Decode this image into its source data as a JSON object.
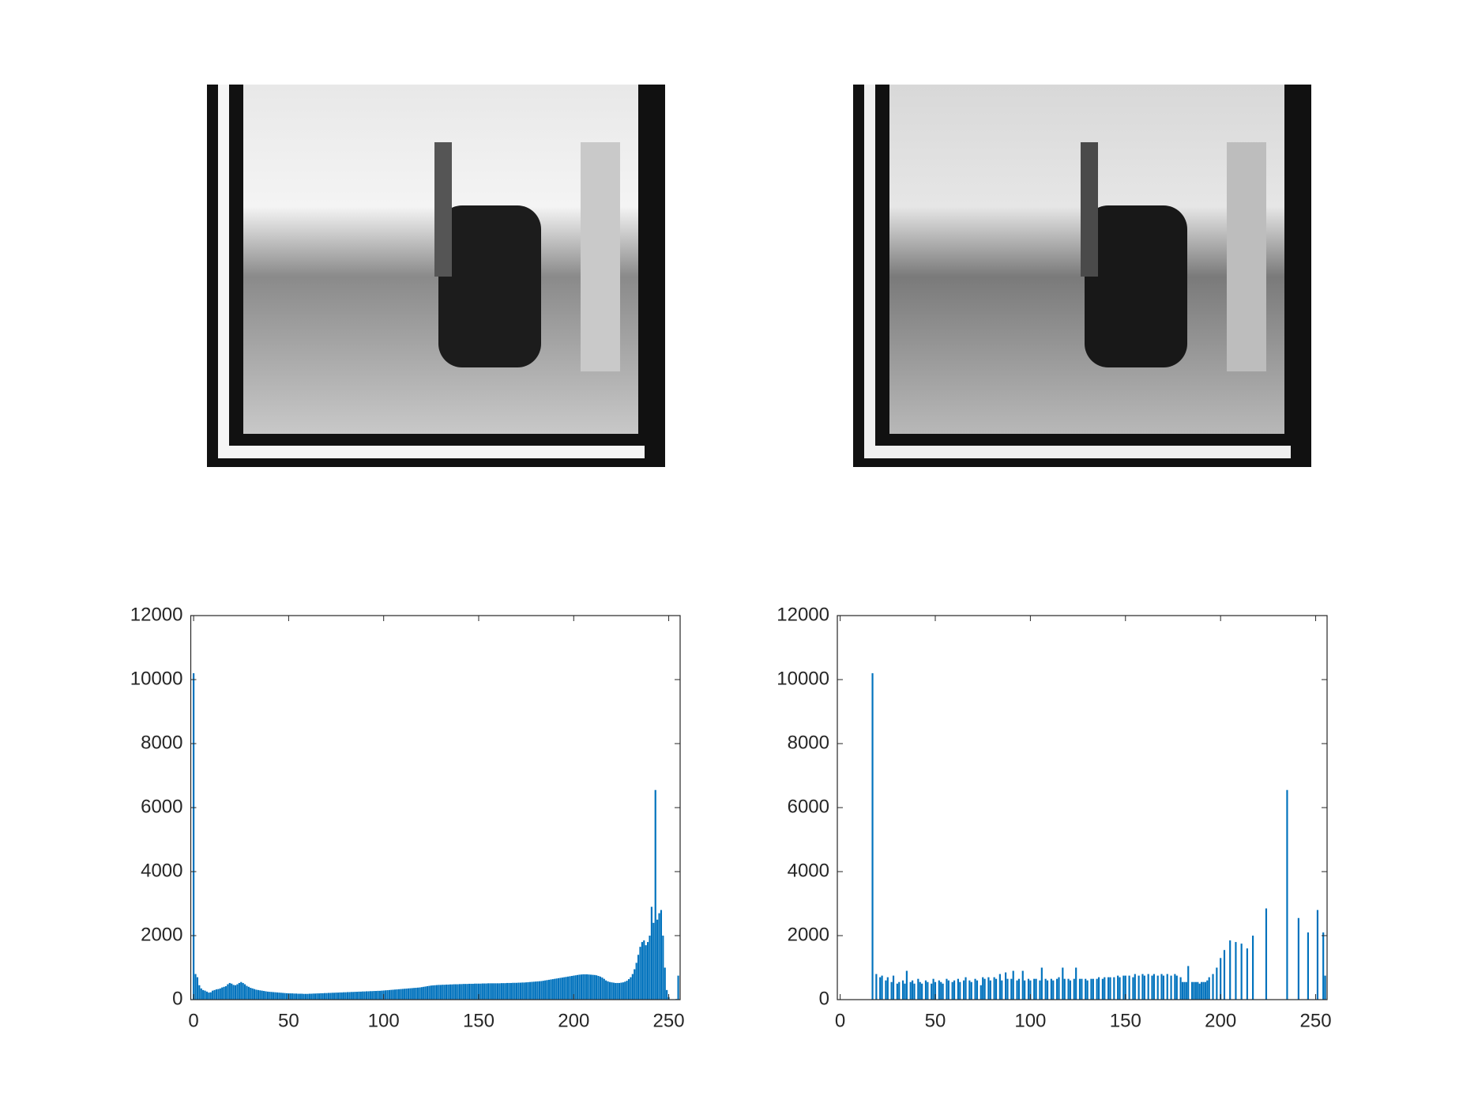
{
  "chart_data": [
    {
      "type": "histogram",
      "color": "#0072bd",
      "xlim": [
        -1.5,
        256
      ],
      "ylim": [
        0,
        12000
      ],
      "xticks": [
        0,
        50,
        100,
        150,
        200,
        250
      ],
      "yticks": [
        0,
        2000,
        4000,
        6000,
        8000,
        10000,
        12000
      ],
      "x": [
        0,
        1,
        2,
        3,
        4,
        5,
        6,
        7,
        8,
        9,
        10,
        11,
        12,
        13,
        14,
        15,
        16,
        17,
        18,
        19,
        20,
        21,
        22,
        23,
        24,
        25,
        26,
        27,
        28,
        29,
        30,
        31,
        32,
        33,
        34,
        35,
        36,
        37,
        38,
        39,
        40,
        41,
        42,
        43,
        44,
        45,
        46,
        47,
        48,
        49,
        50,
        51,
        52,
        53,
        54,
        55,
        56,
        57,
        58,
        59,
        60,
        61,
        62,
        63,
        64,
        65,
        66,
        67,
        68,
        69,
        70,
        71,
        72,
        73,
        74,
        75,
        76,
        77,
        78,
        79,
        80,
        81,
        82,
        83,
        84,
        85,
        86,
        87,
        88,
        89,
        90,
        91,
        92,
        93,
        94,
        95,
        96,
        97,
        98,
        99,
        100,
        101,
        102,
        103,
        104,
        105,
        106,
        107,
        108,
        109,
        110,
        111,
        112,
        113,
        114,
        115,
        116,
        117,
        118,
        119,
        120,
        121,
        122,
        123,
        124,
        125,
        126,
        127,
        128,
        129,
        130,
        131,
        132,
        133,
        134,
        135,
        136,
        137,
        138,
        139,
        140,
        141,
        142,
        143,
        144,
        145,
        146,
        147,
        148,
        149,
        150,
        151,
        152,
        153,
        154,
        155,
        156,
        157,
        158,
        159,
        160,
        161,
        162,
        163,
        164,
        165,
        166,
        167,
        168,
        169,
        170,
        171,
        172,
        173,
        174,
        175,
        176,
        177,
        178,
        179,
        180,
        181,
        182,
        183,
        184,
        185,
        186,
        187,
        188,
        189,
        190,
        191,
        192,
        193,
        194,
        195,
        196,
        197,
        198,
        199,
        200,
        201,
        202,
        203,
        204,
        205,
        206,
        207,
        208,
        209,
        210,
        211,
        212,
        213,
        214,
        215,
        216,
        217,
        218,
        219,
        220,
        221,
        222,
        223,
        224,
        225,
        226,
        227,
        228,
        229,
        230,
        231,
        232,
        233,
        234,
        235,
        236,
        237,
        238,
        239,
        240,
        241,
        242,
        243,
        244,
        245,
        246,
        247,
        248,
        249,
        250,
        251,
        252,
        253,
        254,
        255
      ],
      "values": [
        10200,
        800,
        700,
        450,
        350,
        300,
        280,
        250,
        220,
        230,
        280,
        300,
        320,
        330,
        350,
        380,
        400,
        420,
        480,
        520,
        500,
        460,
        450,
        480,
        520,
        550,
        520,
        480,
        430,
        400,
        370,
        350,
        330,
        310,
        300,
        290,
        280,
        270,
        260,
        250,
        245,
        240,
        235,
        230,
        225,
        220,
        215,
        210,
        205,
        200,
        200,
        195,
        195,
        190,
        190,
        185,
        185,
        185,
        180,
        180,
        180,
        185,
        185,
        190,
        190,
        195,
        195,
        200,
        200,
        205,
        205,
        210,
        210,
        215,
        215,
        220,
        220,
        225,
        225,
        230,
        230,
        235,
        235,
        240,
        240,
        245,
        245,
        250,
        250,
        255,
        255,
        260,
        260,
        265,
        265,
        270,
        270,
        275,
        275,
        280,
        285,
        290,
        295,
        300,
        305,
        310,
        315,
        320,
        325,
        330,
        335,
        340,
        345,
        350,
        355,
        360,
        365,
        370,
        375,
        380,
        390,
        400,
        410,
        420,
        430,
        440,
        445,
        450,
        455,
        460,
        460,
        465,
        465,
        470,
        470,
        475,
        475,
        480,
        480,
        480,
        485,
        485,
        490,
        490,
        490,
        495,
        495,
        495,
        500,
        500,
        500,
        500,
        505,
        505,
        505,
        510,
        510,
        510,
        510,
        510,
        510,
        510,
        515,
        515,
        515,
        520,
        520,
        520,
        525,
        525,
        525,
        530,
        530,
        535,
        535,
        540,
        545,
        550,
        555,
        560,
        565,
        570,
        575,
        580,
        590,
        600,
        610,
        620,
        630,
        640,
        650,
        660,
        670,
        680,
        690,
        700,
        710,
        720,
        730,
        740,
        750,
        760,
        770,
        780,
        785,
        790,
        790,
        790,
        785,
        780,
        775,
        770,
        760,
        740,
        720,
        690,
        650,
        600,
        570,
        550,
        540,
        530,
        520,
        520,
        520,
        530,
        540,
        560,
        590,
        640,
        700,
        800,
        950,
        1150,
        1400,
        1650,
        1800,
        1850,
        1700,
        1800,
        2000,
        2900,
        2400,
        6550,
        2500,
        2700,
        2800,
        2000,
        1000,
        300,
        80,
        0,
        0,
        0,
        20,
        750
      ]
    },
    {
      "type": "histogram",
      "color": "#0072bd",
      "xlim": [
        -1.5,
        256
      ],
      "ylim": [
        0,
        12000
      ],
      "xticks": [
        0,
        50,
        100,
        150,
        200,
        250
      ],
      "yticks": [
        0,
        2000,
        4000,
        6000,
        8000,
        10000,
        12000
      ],
      "x": [
        0,
        1,
        2,
        3,
        4,
        5,
        6,
        7,
        8,
        9,
        10,
        11,
        12,
        13,
        14,
        15,
        16,
        17,
        18,
        19,
        20,
        21,
        22,
        23,
        24,
        25,
        26,
        27,
        28,
        29,
        30,
        31,
        32,
        33,
        34,
        35,
        36,
        37,
        38,
        39,
        40,
        41,
        42,
        43,
        44,
        45,
        46,
        47,
        48,
        49,
        50,
        51,
        52,
        53,
        54,
        55,
        56,
        57,
        58,
        59,
        60,
        61,
        62,
        63,
        64,
        65,
        66,
        67,
        68,
        69,
        70,
        71,
        72,
        73,
        74,
        75,
        76,
        77,
        78,
        79,
        80,
        81,
        82,
        83,
        84,
        85,
        86,
        87,
        88,
        89,
        90,
        91,
        92,
        93,
        94,
        95,
        96,
        97,
        98,
        99,
        100,
        101,
        102,
        103,
        104,
        105,
        106,
        107,
        108,
        109,
        110,
        111,
        112,
        113,
        114,
        115,
        116,
        117,
        118,
        119,
        120,
        121,
        122,
        123,
        124,
        125,
        126,
        127,
        128,
        129,
        130,
        131,
        132,
        133,
        134,
        135,
        136,
        137,
        138,
        139,
        140,
        141,
        142,
        143,
        144,
        145,
        146,
        147,
        148,
        149,
        150,
        151,
        152,
        153,
        154,
        155,
        156,
        157,
        158,
        159,
        160,
        161,
        162,
        163,
        164,
        165,
        166,
        167,
        168,
        169,
        170,
        171,
        172,
        173,
        174,
        175,
        176,
        177,
        178,
        179,
        180,
        181,
        182,
        183,
        184,
        185,
        186,
        187,
        188,
        189,
        190,
        191,
        192,
        193,
        194,
        195,
        196,
        197,
        198,
        199,
        200,
        201,
        202,
        203,
        204,
        205,
        206,
        207,
        208,
        209,
        210,
        211,
        212,
        213,
        214,
        215,
        216,
        217,
        218,
        219,
        220,
        221,
        222,
        223,
        224,
        225,
        226,
        227,
        228,
        229,
        230,
        231,
        232,
        233,
        234,
        235,
        236,
        237,
        238,
        239,
        240,
        241,
        242,
        243,
        244,
        245,
        246,
        247,
        248,
        249,
        250,
        251,
        252,
        253,
        254,
        255
      ],
      "values": [
        0,
        0,
        0,
        0,
        0,
        0,
        0,
        0,
        0,
        0,
        0,
        0,
        0,
        0,
        0,
        0,
        0,
        10200,
        0,
        800,
        0,
        700,
        750,
        0,
        600,
        700,
        0,
        550,
        750,
        0,
        500,
        550,
        0,
        600,
        500,
        900,
        0,
        550,
        600,
        500,
        0,
        650,
        550,
        500,
        0,
        600,
        550,
        0,
        500,
        650,
        550,
        0,
        600,
        550,
        500,
        0,
        650,
        600,
        0,
        550,
        600,
        0,
        650,
        550,
        0,
        600,
        700,
        0,
        600,
        550,
        0,
        650,
        600,
        0,
        450,
        700,
        650,
        0,
        700,
        600,
        0,
        700,
        650,
        0,
        800,
        600,
        0,
        850,
        650,
        0,
        650,
        900,
        0,
        600,
        650,
        0,
        900,
        600,
        0,
        650,
        600,
        0,
        650,
        650,
        0,
        600,
        1000,
        0,
        650,
        600,
        0,
        650,
        600,
        0,
        650,
        700,
        0,
        1000,
        650,
        0,
        650,
        600,
        0,
        650,
        1000,
        0,
        650,
        650,
        0,
        650,
        600,
        0,
        650,
        650,
        0,
        650,
        700,
        0,
        650,
        700,
        0,
        700,
        700,
        0,
        700,
        0,
        750,
        700,
        0,
        750,
        750,
        0,
        750,
        0,
        700,
        800,
        0,
        750,
        0,
        800,
        750,
        0,
        800,
        0,
        750,
        800,
        0,
        750,
        0,
        800,
        750,
        0,
        800,
        0,
        750,
        0,
        800,
        750,
        0,
        700,
        550,
        550,
        550,
        1050,
        0,
        550,
        550,
        550,
        550,
        500,
        550,
        550,
        550,
        600,
        700,
        0,
        800,
        0,
        1000,
        0,
        1300,
        0,
        1550,
        0,
        0,
        1850,
        0,
        0,
        1800,
        0,
        0,
        1750,
        0,
        0,
        1600,
        0,
        0,
        2000,
        0,
        0,
        0,
        0,
        0,
        0,
        2850,
        0,
        0,
        0,
        0,
        0,
        0,
        0,
        0,
        0,
        0,
        6550,
        0,
        0,
        0,
        0,
        0,
        2550,
        0,
        0,
        0,
        0,
        2100,
        0,
        0,
        0,
        0,
        2800,
        0,
        0,
        2100,
        750
      ]
    }
  ]
}
